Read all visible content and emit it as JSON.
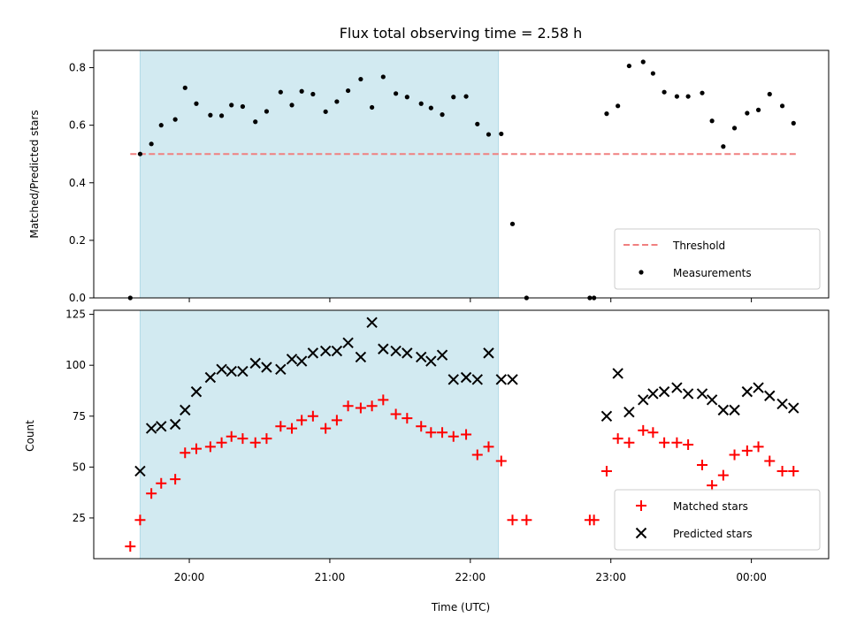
{
  "chart_data": {
    "title": "Flux total observing time = 2.58 h",
    "shaded_region": {
      "x_start_hours": 19.65,
      "x_end_hours": 22.2,
      "color": "#add8e6"
    },
    "x_axis": {
      "label": "Time (UTC)",
      "range_hours": [
        19.32,
        24.55
      ],
      "ticks": [
        {
          "hours": 20,
          "label": "20:00"
        },
        {
          "hours": 21,
          "label": "21:00"
        },
        {
          "hours": 22,
          "label": "22:00"
        },
        {
          "hours": 23,
          "label": "23:00"
        },
        {
          "hours": 24,
          "label": "00:00"
        }
      ]
    },
    "panels": [
      {
        "type": "scatter",
        "ylabel": "Matched/Predicted stars",
        "ylim": [
          0,
          0.86
        ],
        "yticks": [
          "0.0",
          "0.2",
          "0.4",
          "0.6",
          "0.8"
        ],
        "legend": {
          "position": "lower right",
          "entries": [
            "Threshold",
            "Measurements"
          ]
        },
        "threshold": {
          "name": "Threshold",
          "value": 0.5,
          "x_range": [
            19.58,
            24.33
          ],
          "color": "#f08080",
          "style": "dashed"
        },
        "series": [
          {
            "name": "Measurements",
            "color": "#000000",
            "marker": "dot",
            "x": [
              19.58,
              19.65,
              19.73,
              19.8,
              19.9,
              19.97,
              20.05,
              20.15,
              20.23,
              20.3,
              20.38,
              20.47,
              20.55,
              20.65,
              20.73,
              20.8,
              20.88,
              20.97,
              21.05,
              21.13,
              21.22,
              21.3,
              21.38,
              21.47,
              21.55,
              21.65,
              21.72,
              21.8,
              21.88,
              21.97,
              22.05,
              22.13,
              22.22,
              22.3,
              22.4,
              22.85,
              22.88,
              22.97,
              23.05,
              23.13,
              23.23,
              23.3,
              23.38,
              23.47,
              23.55,
              23.65,
              23.72,
              23.8,
              23.88,
              23.97,
              24.05,
              24.13,
              24.22,
              24.3
            ],
            "y": [
              0.0,
              0.5,
              0.535,
              0.6,
              0.62,
              0.73,
              0.675,
              0.635,
              0.633,
              0.67,
              0.665,
              0.612,
              0.648,
              0.715,
              0.67,
              0.718,
              0.708,
              0.647,
              0.682,
              0.72,
              0.76,
              0.662,
              0.768,
              0.71,
              0.698,
              0.675,
              0.66,
              0.637,
              0.698,
              0.7,
              0.604,
              0.568,
              0.57,
              0.257,
              0.0,
              0.0,
              0.0,
              0.64,
              0.667,
              0.806,
              0.82,
              0.78,
              0.715,
              0.7,
              0.7,
              0.712,
              0.615,
              0.526,
              0.59,
              0.642,
              0.653,
              0.708,
              0.667,
              0.607
            ]
          }
        ]
      },
      {
        "type": "scatter",
        "ylabel": "Count",
        "ylim": [
          5,
          127
        ],
        "yticks": [
          "25",
          "50",
          "75",
          "100",
          "125"
        ],
        "legend": {
          "position": "lower right",
          "entries": [
            "Matched stars",
            "Predicted stars"
          ]
        },
        "series": [
          {
            "name": "Matched stars",
            "color": "#ff0000",
            "marker": "plus",
            "x": [
              19.58,
              19.65,
              19.73,
              19.8,
              19.9,
              19.97,
              20.05,
              20.15,
              20.23,
              20.3,
              20.38,
              20.47,
              20.55,
              20.65,
              20.73,
              20.8,
              20.88,
              20.97,
              21.05,
              21.13,
              21.22,
              21.3,
              21.38,
              21.47,
              21.55,
              21.65,
              21.72,
              21.8,
              21.88,
              21.97,
              22.05,
              22.13,
              22.22,
              22.3,
              22.4,
              22.85,
              22.88,
              22.97,
              23.05,
              23.13,
              23.23,
              23.3,
              23.38,
              23.47,
              23.55,
              23.65,
              23.72,
              23.8,
              23.88,
              23.97,
              24.05,
              24.13,
              24.22,
              24.3
            ],
            "y": [
              11,
              24,
              37,
              42,
              44,
              57,
              59,
              60,
              62,
              65,
              64,
              62,
              64,
              70,
              69,
              73,
              75,
              69,
              73,
              80,
              79,
              80,
              83,
              76,
              74,
              70,
              67,
              67,
              65,
              66,
              56,
              60,
              53,
              24,
              24,
              24,
              24,
              48,
              64,
              62,
              68,
              67,
              62,
              62,
              61,
              51,
              41,
              46,
              56,
              58,
              60,
              53,
              48,
              48
            ]
          },
          {
            "name": "Predicted stars",
            "color": "#000000",
            "marker": "x",
            "x": [
              19.65,
              19.73,
              19.8,
              19.9,
              19.97,
              20.05,
              20.15,
              20.23,
              20.3,
              20.38,
              20.47,
              20.55,
              20.65,
              20.73,
              20.8,
              20.88,
              20.97,
              21.05,
              21.13,
              21.22,
              21.3,
              21.38,
              21.47,
              21.55,
              21.65,
              21.72,
              21.8,
              21.88,
              21.97,
              22.05,
              22.13,
              22.22,
              22.3,
              22.97,
              23.05,
              23.13,
              23.23,
              23.3,
              23.38,
              23.47,
              23.55,
              23.65,
              23.72,
              23.8,
              23.88,
              23.97,
              24.05,
              24.13,
              24.22,
              24.3
            ],
            "y": [
              48,
              69,
              70,
              71,
              78,
              87,
              94,
              98,
              97,
              97,
              101,
              99,
              98,
              103,
              102,
              106,
              107,
              107,
              111,
              104,
              121,
              108,
              107,
              106,
              104,
              102,
              105,
              93,
              94,
              93,
              106,
              93,
              93,
              75,
              96,
              77,
              83,
              86,
              87,
              89,
              86,
              86,
              83,
              78,
              78,
              87,
              89,
              85,
              81,
              79
            ]
          }
        ]
      }
    ]
  }
}
